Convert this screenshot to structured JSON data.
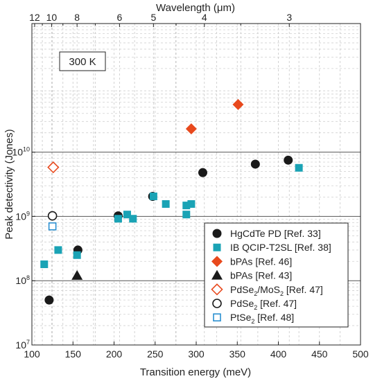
{
  "chart_data": {
    "type": "scatter",
    "xlabel": "Transition energy (meV)",
    "ylabel": "Peak detectivity (Jones)",
    "top_axis_label": "Wavelength (μm)",
    "xlim": [
      100,
      500
    ],
    "ylim": [
      10000000,
      1000000000000
    ],
    "y_scale": "log",
    "x_ticks": [
      100,
      150,
      200,
      250,
      300,
      350,
      400,
      450,
      500
    ],
    "x_tick_labels": [
      "100",
      "150",
      "200",
      "250",
      "300",
      "350",
      "400",
      "450",
      "500"
    ],
    "y_ticks": [
      10000000,
      100000000,
      1000000000,
      10000000000
    ],
    "y_tick_labels": [
      {
        "base": "10",
        "exp": "7"
      },
      {
        "base": "10",
        "exp": "8"
      },
      {
        "base": "10",
        "exp": "9"
      },
      {
        "base": "10",
        "exp": "10"
      }
    ],
    "top_ticks": [
      {
        "wavelength": 12,
        "label": "12"
      },
      {
        "wavelength": 10,
        "label": "10"
      },
      {
        "wavelength": 8,
        "label": "8"
      },
      {
        "wavelength": 6,
        "label": "6"
      },
      {
        "wavelength": 5,
        "label": "5"
      },
      {
        "wavelength": 4,
        "label": "4"
      },
      {
        "wavelength": 3,
        "label": "3"
      }
    ],
    "top_minor_ticks": [
      11,
      9,
      7,
      4.5,
      3.5
    ],
    "annotation": "300 K",
    "grid": true,
    "legend_position": "bottom-right",
    "series": [
      {
        "name": "HgCdTe PD [Ref. 33]",
        "label_parts": [
          {
            "t": "HgCdTe PD [Ref. 33]"
          }
        ],
        "marker": "circle-filled",
        "color": "#1a1a1a",
        "points": [
          [
            121,
            50000000
          ],
          [
            156,
            300000000
          ],
          [
            205,
            1020000000
          ],
          [
            247,
            2050000000
          ],
          [
            308,
            4800000000
          ],
          [
            372,
            6500000000
          ],
          [
            412,
            7500000000
          ]
        ]
      },
      {
        "name": "IB QCIP-T2SL [Ref. 38]",
        "label_parts": [
          {
            "t": "IB QCIP-T2SL [Ref. 38]"
          }
        ],
        "marker": "square-filled",
        "color": "#1aa3b5",
        "points": [
          [
            115,
            180000000
          ],
          [
            132,
            300000000
          ],
          [
            155,
            250000000
          ],
          [
            205,
            920000000
          ],
          [
            216,
            1070000000
          ],
          [
            223,
            920000000
          ],
          [
            248,
            2050000000
          ],
          [
            263,
            1560000000
          ],
          [
            288,
            1480000000
          ],
          [
            288,
            1070000000
          ],
          [
            294,
            1560000000
          ],
          [
            425,
            5700000000
          ]
        ]
      },
      {
        "name": "bPAs [Ref. 46]",
        "label_parts": [
          {
            "t": "bPAs [Ref. 46]"
          }
        ],
        "marker": "diamond-filled",
        "color": "#e8491d",
        "points": [
          [
            294,
            23000000000
          ],
          [
            351,
            55000000000
          ]
        ]
      },
      {
        "name": "bPAs [Ref. 43]",
        "label_parts": [
          {
            "t": "bPAs [Ref. 43]"
          }
        ],
        "marker": "triangle-filled",
        "color": "#1a1a1a",
        "points": [
          [
            155,
            120000000
          ]
        ]
      },
      {
        "name": "PdSe2/MoS2 [Ref. 47]",
        "label_parts": [
          {
            "t": "PdSe"
          },
          {
            "t": "2",
            "sub": true
          },
          {
            "t": "/MoS"
          },
          {
            "t": "2",
            "sub": true
          },
          {
            "t": " [Ref. 47]"
          }
        ],
        "marker": "diamond-open",
        "color": "#e8491d",
        "points": [
          [
            126,
            5800000000
          ]
        ]
      },
      {
        "name": "PdSe2 [Ref. 47]",
        "label_parts": [
          {
            "t": "PdSe"
          },
          {
            "t": "2",
            "sub": true
          },
          {
            "t": " [Ref. 47]"
          }
        ],
        "marker": "circle-open",
        "color": "#1a1a1a",
        "points": [
          [
            125,
            1020000000
          ]
        ]
      },
      {
        "name": "PtSe2 [Ref. 48]",
        "label_parts": [
          {
            "t": "PtSe"
          },
          {
            "t": "2",
            "sub": true
          },
          {
            "t": " [Ref. 48]"
          }
        ],
        "marker": "square-open",
        "color": "#2a8fd0",
        "points": [
          [
            125,
            700000000
          ]
        ]
      }
    ]
  }
}
